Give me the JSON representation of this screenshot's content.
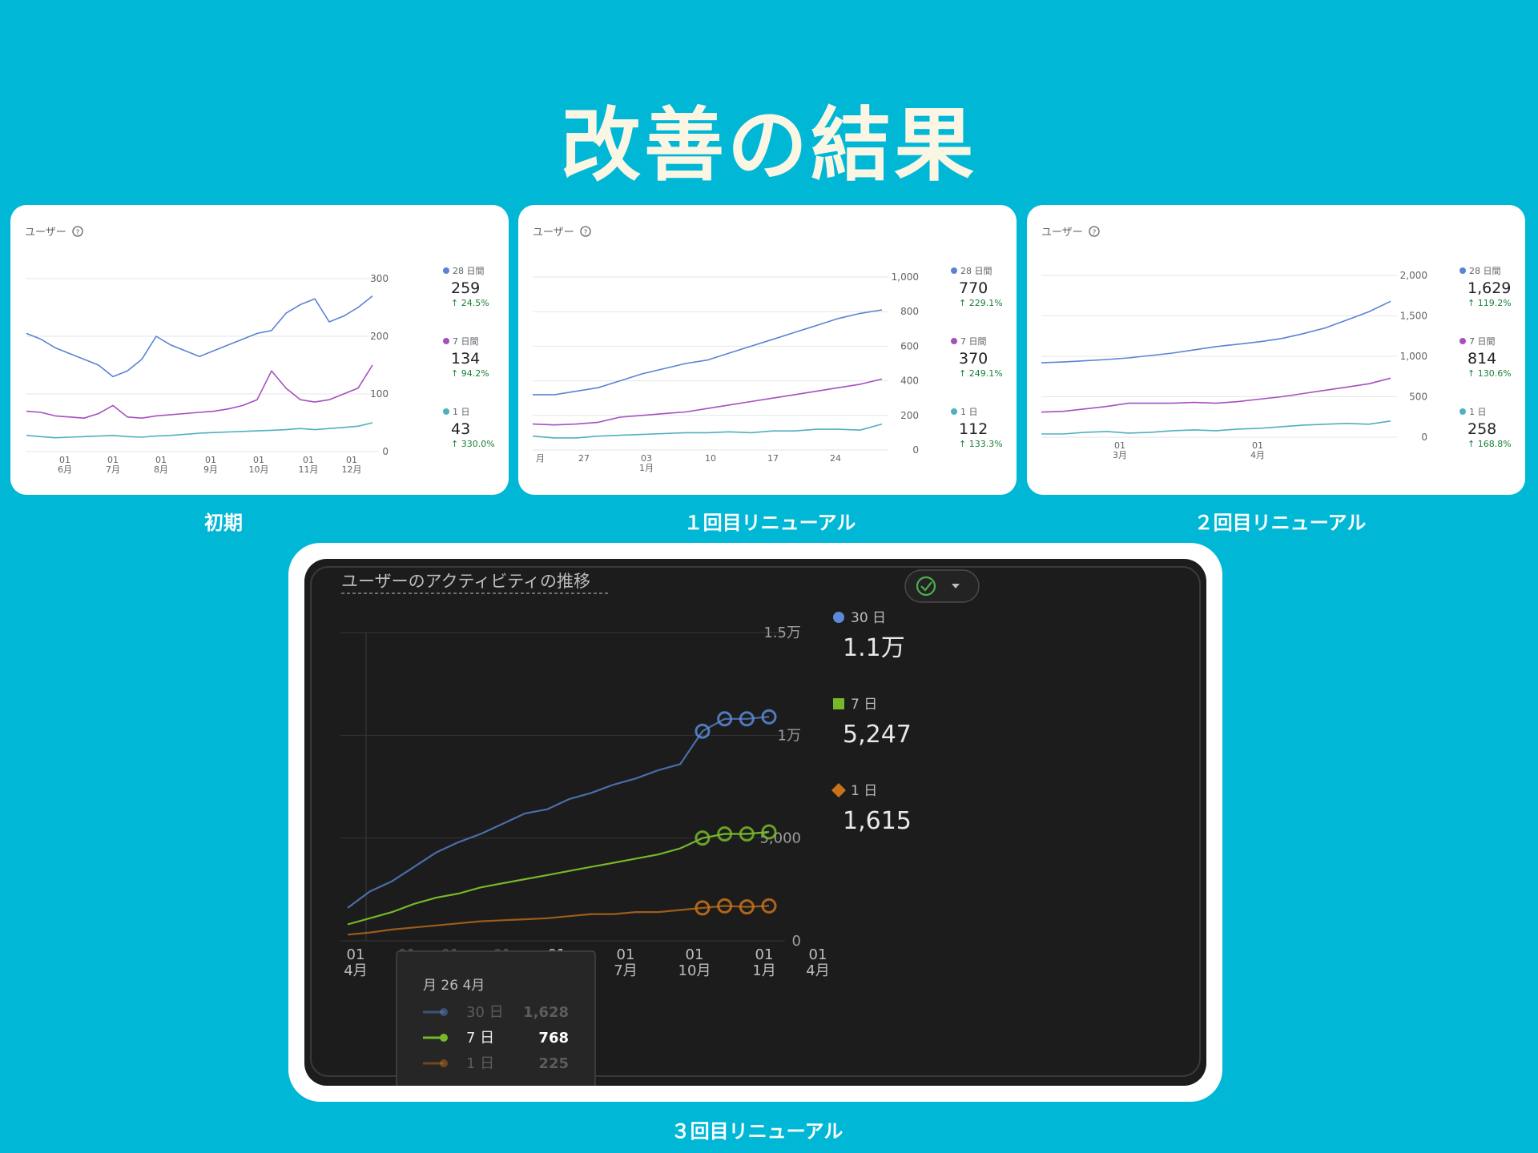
{
  "title": "改善の結果",
  "captions": [
    "初期",
    "１回目リニューアル",
    "２回目リニューアル",
    "３回目リニューアル"
  ],
  "colors": {
    "background": "#00b8d6",
    "blue": "#5b83d3",
    "purple": "#a64fbf",
    "teal": "#4fb0bd",
    "dark_blue": "#5a8ad8",
    "dark_green": "#76b82a",
    "dark_orange": "#c8731a"
  },
  "chart_data": [
    {
      "type": "line",
      "title": "ユーザー",
      "x_tick_labels": [
        [
          "01",
          "6月"
        ],
        [
          "01",
          "7月"
        ],
        [
          "01",
          "8月"
        ],
        [
          "01",
          "9月"
        ],
        [
          "01",
          "10月"
        ],
        [
          "01",
          "11月"
        ],
        [
          "01",
          "12月"
        ]
      ],
      "y_tick_labels": [
        "300",
        "200",
        "100",
        "0"
      ],
      "ylim": [
        0,
        300
      ],
      "series": [
        {
          "name": "28 日間",
          "value": "259",
          "change": "↑ 24.5%",
          "values": [
            205,
            195,
            180,
            170,
            160,
            150,
            130,
            140,
            160,
            200,
            185,
            175,
            165,
            175,
            185,
            195,
            205,
            210,
            240,
            255,
            265,
            225,
            235,
            250,
            270
          ]
        },
        {
          "name": "7 日間",
          "value": "134",
          "change": "↑ 94.2%",
          "values": [
            70,
            68,
            62,
            60,
            58,
            66,
            80,
            60,
            58,
            62,
            64,
            66,
            68,
            70,
            74,
            80,
            90,
            140,
            110,
            90,
            86,
            90,
            100,
            110,
            150
          ]
        },
        {
          "name": "1 日",
          "value": "43",
          "change": "↑ 330.0%",
          "values": [
            28,
            26,
            24,
            25,
            26,
            27,
            28,
            26,
            25,
            27,
            28,
            30,
            32,
            33,
            34,
            35,
            36,
            37,
            38,
            40,
            38,
            40,
            42,
            44,
            50
          ]
        }
      ]
    },
    {
      "type": "line",
      "title": "ユーザー",
      "x_tick_labels": [
        [
          "月"
        ],
        [
          "27"
        ],
        [
          "03",
          "1月"
        ],
        [
          "10"
        ],
        [
          "17"
        ],
        [
          "24"
        ]
      ],
      "y_tick_labels": [
        "1,000",
        "800",
        "600",
        "400",
        "200",
        "0"
      ],
      "ylim": [
        0,
        1000
      ],
      "series": [
        {
          "name": "28 日間",
          "value": "770",
          "change": "↑ 229.1%",
          "values": [
            320,
            320,
            340,
            360,
            400,
            440,
            470,
            500,
            520,
            560,
            600,
            640,
            680,
            720,
            760,
            790,
            810
          ]
        },
        {
          "name": "7 日間",
          "value": "370",
          "change": "↑ 249.1%",
          "values": [
            150,
            145,
            150,
            160,
            190,
            200,
            210,
            220,
            240,
            260,
            280,
            300,
            320,
            340,
            360,
            380,
            410
          ]
        },
        {
          "name": "1 日",
          "value": "112",
          "change": "↑ 133.3%",
          "values": [
            80,
            70,
            70,
            80,
            85,
            90,
            95,
            100,
            100,
            105,
            100,
            110,
            110,
            120,
            120,
            115,
            150
          ]
        }
      ]
    },
    {
      "type": "line",
      "title": "ユーザー",
      "x_tick_labels": [
        [
          "01",
          "3月"
        ],
        [
          "01",
          "4月"
        ]
      ],
      "y_tick_labels": [
        "2,000",
        "1,500",
        "1,000",
        "500",
        "0"
      ],
      "ylim": [
        0,
        2000
      ],
      "series": [
        {
          "name": "28 日間",
          "value": "1,629",
          "change": "↑ 119.2%",
          "values": [
            920,
            930,
            945,
            960,
            980,
            1010,
            1040,
            1080,
            1120,
            1150,
            1180,
            1220,
            1280,
            1350,
            1450,
            1550,
            1680
          ]
        },
        {
          "name": "7 日間",
          "value": "814",
          "change": "↑ 130.6%",
          "values": [
            310,
            320,
            350,
            380,
            420,
            420,
            420,
            430,
            420,
            440,
            470,
            500,
            540,
            580,
            620,
            660,
            730
          ]
        },
        {
          "name": "1 日",
          "value": "258",
          "change": "↑ 168.8%",
          "values": [
            40,
            40,
            60,
            70,
            50,
            60,
            80,
            90,
            80,
            100,
            110,
            130,
            150,
            160,
            170,
            160,
            200
          ]
        }
      ]
    },
    {
      "type": "line",
      "title": "ユーザーのアクティビティの推移",
      "x_tick_labels": [
        [
          "01",
          "4月"
        ],
        [
          "01",
          "7月"
        ],
        [
          "01",
          "10月"
        ],
        [
          "01",
          "1月"
        ],
        [
          "01",
          "4月"
        ],
        [
          "01",
          "7月"
        ],
        [
          "01",
          "10月"
        ],
        [
          "01",
          "1月"
        ],
        [
          "01",
          "4月"
        ]
      ],
      "y_tick_labels": [
        "1.5万",
        "1万",
        "5,000",
        "0"
      ],
      "ylim": [
        0,
        15000
      ],
      "series": [
        {
          "name": "30 日",
          "value": "1.1万",
          "values": [
            1600,
            2400,
            2900,
            3600,
            4300,
            4800,
            5200,
            5700,
            6200,
            6400,
            6900,
            7200,
            7600,
            7900,
            8300,
            8600,
            10200,
            10800,
            10800,
            10900
          ]
        },
        {
          "name": "7 日",
          "value": "5,247",
          "values": [
            800,
            1100,
            1400,
            1800,
            2100,
            2300,
            2600,
            2800,
            3000,
            3200,
            3400,
            3600,
            3800,
            4000,
            4200,
            4500,
            5000,
            5200,
            5200,
            5300
          ]
        },
        {
          "name": "1 日",
          "value": "1,615",
          "values": [
            300,
            400,
            550,
            650,
            750,
            850,
            950,
            1000,
            1050,
            1100,
            1200,
            1300,
            1300,
            1400,
            1400,
            1500,
            1600,
            1700,
            1650,
            1700
          ]
        }
      ],
      "tooltip": {
        "title": "月 26 4月",
        "rows": [
          {
            "label": "30 日",
            "value": "1,628"
          },
          {
            "label": "7 日",
            "value": "768"
          },
          {
            "label": "1 日",
            "value": "225"
          }
        ]
      }
    }
  ]
}
